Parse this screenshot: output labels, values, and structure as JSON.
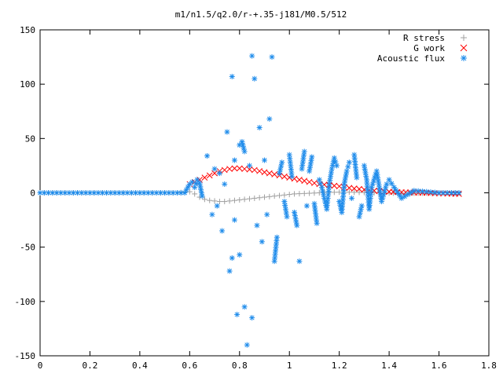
{
  "chart_data": {
    "type": "scatter",
    "title": "m1/n1.5/q2.0/r-+.35-j181/M0.5/512",
    "xlabel": "",
    "ylabel": "",
    "xlim": [
      0,
      1.8
    ],
    "ylim": [
      -150,
      150
    ],
    "xticks": [
      "0",
      "0.2",
      "0.4",
      "0.6",
      "0.8",
      "1",
      "1.2",
      "1.4",
      "1.6",
      "1.8"
    ],
    "yticks": [
      "150",
      "100",
      "50",
      "0",
      "-50",
      "-100",
      "-150"
    ],
    "grid": false,
    "legend_position": "top-right",
    "series": [
      {
        "name": "R stress",
        "marker": "+",
        "color": "#a0a0a0",
        "x": [
          0.0,
          0.05,
          0.1,
          0.15,
          0.2,
          0.25,
          0.3,
          0.35,
          0.4,
          0.45,
          0.5,
          0.55,
          0.58,
          0.6,
          0.62,
          0.64,
          0.66,
          0.68,
          0.7,
          0.72,
          0.74,
          0.76,
          0.78,
          0.8,
          0.82,
          0.84,
          0.86,
          0.88,
          0.9,
          0.92,
          0.94,
          0.96,
          0.98,
          1.0,
          1.02,
          1.04,
          1.06,
          1.08,
          1.1,
          1.12,
          1.14,
          1.16,
          1.18,
          1.2,
          1.22,
          1.24,
          1.26,
          1.28,
          1.3,
          1.32,
          1.34,
          1.36,
          1.38,
          1.4,
          1.45,
          1.5,
          1.55,
          1.6,
          1.65,
          1.68
        ],
        "y": [
          0,
          0,
          0,
          0,
          0,
          0,
          0,
          0,
          0,
          0,
          0,
          0,
          0.5,
          1,
          -1,
          -4,
          -6,
          -7,
          -7.5,
          -8,
          -8,
          -7.5,
          -7,
          -6.5,
          -6,
          -5.5,
          -5,
          -4.5,
          -4,
          -3.5,
          -3,
          -2.5,
          -2,
          -1.5,
          -1,
          -0.8,
          -0.6,
          -0.4,
          -0.2,
          0,
          0.2,
          0.4,
          0.5,
          0.6,
          0.6,
          0.6,
          0.5,
          0.4,
          0.3,
          0.2,
          0.1,
          0,
          -0.1,
          -0.2,
          -0.3,
          -0.3,
          -0.2,
          -0.1,
          0,
          0
        ]
      },
      {
        "name": "G work",
        "marker": "x",
        "color": "#ff0000",
        "x": [
          0.6,
          0.62,
          0.64,
          0.66,
          0.68,
          0.7,
          0.72,
          0.74,
          0.76,
          0.78,
          0.8,
          0.82,
          0.84,
          0.86,
          0.88,
          0.9,
          0.92,
          0.94,
          0.96,
          0.98,
          1.0,
          1.02,
          1.04,
          1.06,
          1.08,
          1.1,
          1.12,
          1.14,
          1.16,
          1.18,
          1.2,
          1.22,
          1.24,
          1.26,
          1.28,
          1.3,
          1.32,
          1.34,
          1.36,
          1.38,
          1.4,
          1.45,
          1.5,
          1.55,
          1.6,
          1.65,
          1.68
        ],
        "y": [
          8,
          10,
          12,
          14,
          16,
          18,
          20,
          21,
          22,
          22.5,
          22.5,
          22,
          21.5,
          21,
          20,
          19,
          18,
          17,
          16,
          15,
          14,
          13,
          12,
          11,
          10,
          9,
          8,
          7.5,
          7,
          6.5,
          6,
          5,
          4.5,
          4,
          3.5,
          3,
          2.5,
          2,
          1.5,
          1.2,
          1,
          0.5,
          0.2,
          0,
          -0.5,
          -0.8,
          -1
        ]
      },
      {
        "name": "Acoustic flux",
        "marker": "*",
        "color": "#1f8ceb",
        "x": [
          0.0,
          0.05,
          0.1,
          0.15,
          0.2,
          0.25,
          0.3,
          0.35,
          0.4,
          0.45,
          0.5,
          0.55,
          0.58,
          0.6,
          0.61,
          0.62,
          0.63,
          0.64,
          0.65,
          0.67,
          0.69,
          0.7,
          0.71,
          0.72,
          0.73,
          0.74,
          0.75,
          0.76,
          0.77,
          0.77,
          0.78,
          0.78,
          0.79,
          0.8,
          0.8,
          0.81,
          0.82,
          0.82,
          0.83,
          0.84,
          0.85,
          0.85,
          0.86,
          0.87,
          0.88,
          0.89,
          0.9,
          0.91,
          0.92,
          0.93,
          0.94,
          0.95,
          0.96,
          0.97,
          0.98,
          0.99,
          1.0,
          1.01,
          1.02,
          1.03,
          1.04,
          1.05,
          1.06,
          1.07,
          1.08,
          1.09,
          1.1,
          1.11,
          1.12,
          1.13,
          1.14,
          1.15,
          1.16,
          1.17,
          1.18,
          1.19,
          1.2,
          1.21,
          1.22,
          1.23,
          1.24,
          1.25,
          1.26,
          1.27,
          1.28,
          1.29,
          1.3,
          1.31,
          1.32,
          1.33,
          1.35,
          1.37,
          1.39,
          1.4,
          1.42,
          1.45,
          1.5,
          1.55,
          1.6,
          1.65,
          1.68
        ],
        "y": [
          0,
          0,
          0,
          0,
          0,
          0,
          0,
          0,
          0,
          0,
          0,
          0,
          0,
          8,
          10,
          5,
          12,
          9,
          -3,
          34,
          -20,
          22,
          -12,
          18,
          -35,
          8,
          56,
          -72,
          107,
          -60,
          -25,
          30,
          -112,
          44,
          -57,
          47,
          38,
          -105,
          -140,
          25,
          126,
          -115,
          105,
          -30,
          60,
          -45,
          30,
          -20,
          68,
          125,
          -63,
          -41,
          18,
          28,
          -8,
          -22,
          35,
          15,
          -18,
          -30,
          -63,
          22,
          38,
          -12,
          20,
          33,
          -10,
          -28,
          12,
          5,
          -5,
          -15,
          8,
          22,
          32,
          25,
          -8,
          -18,
          8,
          20,
          28,
          -5,
          35,
          14,
          -22,
          -12,
          25,
          12,
          -15,
          5,
          20,
          -8,
          8,
          12,
          5,
          -5,
          2,
          1,
          0,
          0,
          0
        ]
      }
    ]
  }
}
